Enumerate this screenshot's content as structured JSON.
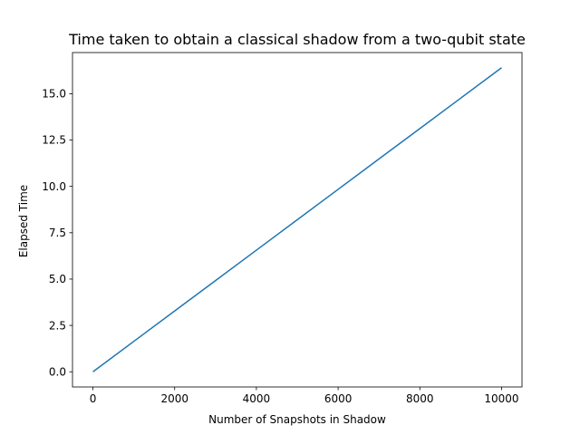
{
  "chart_data": {
    "type": "line",
    "title": "Time taken to obtain a classical shadow from a two-qubit state",
    "xlabel": "Number of Snapshots in Shadow",
    "ylabel": "Elapsed Time",
    "xlim": [
      -500,
      10500
    ],
    "ylim": [
      -0.82,
      17.22
    ],
    "x_ticks": [
      0,
      2000,
      4000,
      6000,
      8000,
      10000
    ],
    "x_tick_labels": [
      "0",
      "2000",
      "4000",
      "6000",
      "8000",
      "10000"
    ],
    "y_ticks": [
      0.0,
      2.5,
      5.0,
      7.5,
      10.0,
      12.5,
      15.0
    ],
    "y_tick_labels": [
      "0.0",
      "2.5",
      "5.0",
      "7.5",
      "10.0",
      "12.5",
      "15.0"
    ],
    "grid": false,
    "legend": "none",
    "series": [
      {
        "color": "#1f77b4",
        "x": [
          0,
          1000,
          2000,
          3000,
          4000,
          5000,
          6000,
          7000,
          8000,
          9000,
          10000
        ],
        "y": [
          0.0,
          1.64,
          3.28,
          4.92,
          6.56,
          8.2,
          9.84,
          11.48,
          13.12,
          14.76,
          16.4
        ]
      }
    ]
  }
}
